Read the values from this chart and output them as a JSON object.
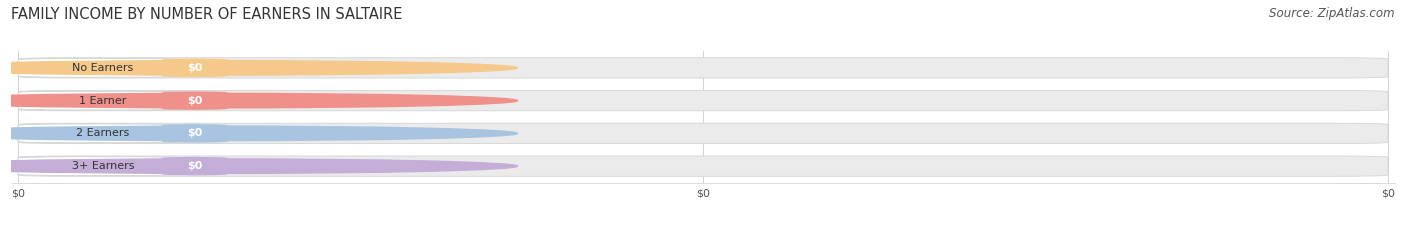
{
  "title": "FAMILY INCOME BY NUMBER OF EARNERS IN SALTAIRE",
  "source": "Source: ZipAtlas.com",
  "categories": [
    "No Earners",
    "1 Earner",
    "2 Earners",
    "3+ Earners"
  ],
  "values": [
    0,
    0,
    0,
    0
  ],
  "bar_colors": [
    "#f5c98a",
    "#f0908a",
    "#a8c4e0",
    "#c4aed8"
  ],
  "label_bg_colors": [
    "#ffffff",
    "#ffffff",
    "#ffffff",
    "#ffffff"
  ],
  "circle_colors": [
    "#f5c98a",
    "#f0908a",
    "#a8c4e0",
    "#c4aed8"
  ],
  "background_color": "#ffffff",
  "bar_bg_color": "#ebebeb",
  "figsize": [
    14.06,
    2.34
  ],
  "dpi": 100,
  "bar_height": 0.62,
  "n_bars": 4
}
